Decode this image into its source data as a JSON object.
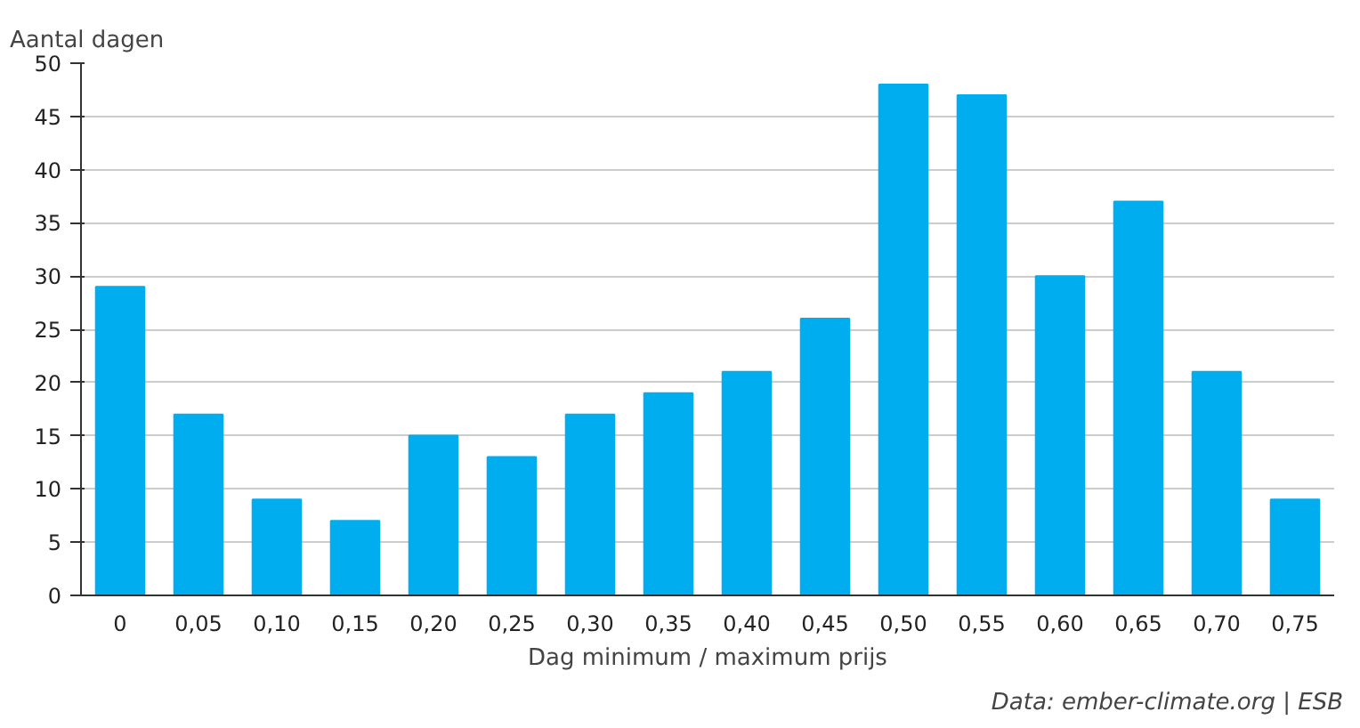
{
  "chart_data": {
    "type": "bar",
    "ylabel": "Aantal dagen",
    "xlabel": "Dag minimum / maximum prijs",
    "categories": [
      "0",
      "0,05",
      "0,10",
      "0,15",
      "0,20",
      "0,25",
      "0,30",
      "0,35",
      "0,40",
      "0,45",
      "0,50",
      "0,55",
      "0,60",
      "0,65",
      "0,70",
      "0,75"
    ],
    "values": [
      29,
      17,
      9,
      7,
      15,
      13,
      17,
      19,
      21,
      26,
      48,
      47,
      30,
      37,
      21,
      9
    ],
    "color": "#00aeef",
    "ylim": [
      0,
      50
    ],
    "yticks": [
      0,
      5,
      10,
      15,
      20,
      25,
      30,
      35,
      40,
      45,
      50
    ],
    "grid": "y",
    "annotations": [
      "Data: ember-climate.org | ESB"
    ]
  }
}
